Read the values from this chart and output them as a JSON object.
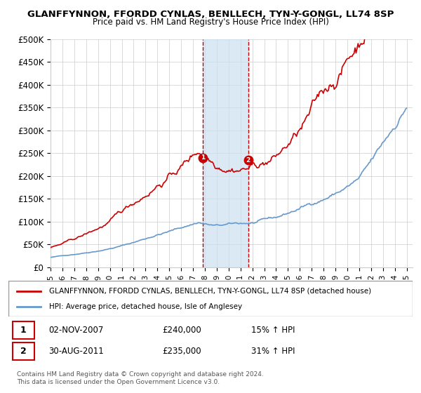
{
  "title": "GLANFFYNNON, FFORDD CYNLAS, BENLLECH, TYN-Y-GONGL, LL74 8SP",
  "subtitle": "Price paid vs. HM Land Registry's House Price Index (HPI)",
  "ylabel_ticks": [
    "£0",
    "£50K",
    "£100K",
    "£150K",
    "£200K",
    "£250K",
    "£300K",
    "£350K",
    "£400K",
    "£450K",
    "£500K"
  ],
  "ytick_vals": [
    0,
    50000,
    100000,
    150000,
    200000,
    250000,
    300000,
    350000,
    400000,
    450000,
    500000
  ],
  "ylim": [
    0,
    500000
  ],
  "xlim_start": 1995.0,
  "xlim_end": 2025.5,
  "marker1_x": 2007.84,
  "marker1_y": 240000,
  "marker1_label": "1",
  "marker1_date": "02-NOV-2007",
  "marker1_price": "£240,000",
  "marker1_hpi": "15% ↑ HPI",
  "marker2_x": 2011.66,
  "marker2_y": 235000,
  "marker2_label": "2",
  "marker2_date": "30-AUG-2011",
  "marker2_price": "£235,000",
  "marker2_hpi": "31% ↑ HPI",
  "shade_x1": 2007.84,
  "shade_x2": 2011.66,
  "legend_line1": "GLANFFYNNON, FFORDD CYNLAS, BENLLECH, TYN-Y-GONGL, LL74 8SP (detached house)",
  "legend_line2": "HPI: Average price, detached house, Isle of Anglesey",
  "line1_color": "#cc0000",
  "line2_color": "#6699cc",
  "shade_color": "#cce0f0",
  "marker_color": "#cc0000",
  "vline_color": "#cc0000",
  "grid_color": "#cccccc",
  "bg_color": "#ffffff",
  "footnote": "Contains HM Land Registry data © Crown copyright and database right 2024.\nThis data is licensed under the Open Government Licence v3.0.",
  "xtick_years": [
    1995,
    1996,
    1997,
    1998,
    1999,
    2000,
    2001,
    2002,
    2003,
    2004,
    2005,
    2006,
    2007,
    2008,
    2009,
    2010,
    2011,
    2012,
    2013,
    2014,
    2015,
    2016,
    2017,
    2018,
    2019,
    2020,
    2021,
    2022,
    2023,
    2024,
    2025
  ]
}
